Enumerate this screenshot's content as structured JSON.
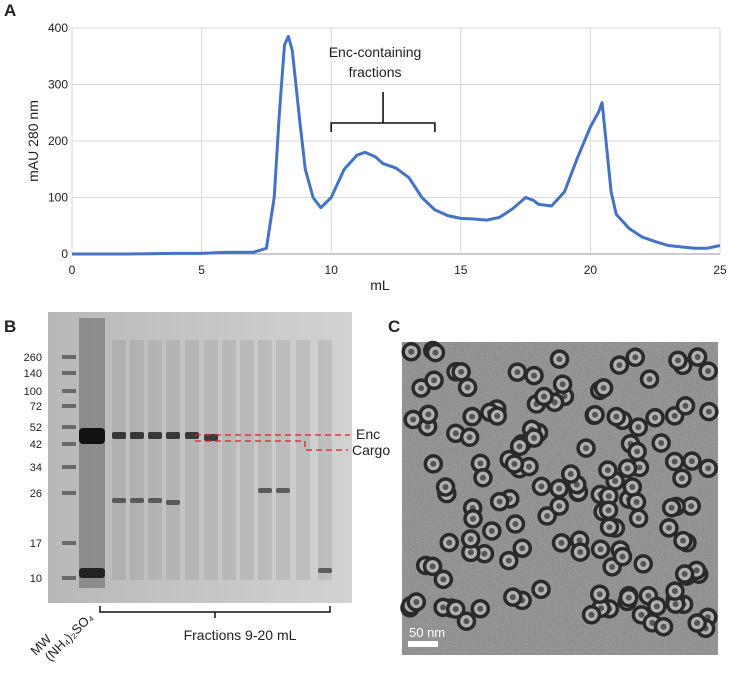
{
  "chart_data": {
    "type": "line",
    "panel_label": "A",
    "xlabel": "mL",
    "ylabel": "mAU 280 nm",
    "x": [
      0,
      1,
      2,
      3,
      4,
      5,
      6,
      7,
      7.5,
      7.8,
      8,
      8.2,
      8.35,
      8.5,
      8.8,
      9,
      9.3,
      9.6,
      10,
      10.5,
      11,
      11.3,
      11.7,
      12,
      12.5,
      13,
      13.5,
      14,
      14.5,
      15,
      15.5,
      16,
      16.5,
      17,
      17.5,
      17.8,
      18,
      18.5,
      19,
      19.5,
      20,
      20.3,
      20.45,
      20.6,
      20.8,
      21,
      21.5,
      22,
      22.5,
      23,
      24,
      24.5,
      25
    ],
    "values": [
      0,
      0,
      0,
      0.5,
      1,
      1,
      3,
      3,
      10,
      100,
      250,
      370,
      385,
      360,
      230,
      150,
      100,
      82,
      100,
      150,
      175,
      180,
      172,
      160,
      152,
      135,
      100,
      78,
      68,
      63,
      62,
      60,
      65,
      80,
      100,
      95,
      88,
      85,
      110,
      170,
      225,
      250,
      268,
      200,
      110,
      70,
      45,
      30,
      22,
      15,
      10,
      10,
      15
    ],
    "color": "#4472c4",
    "xlim": [
      0,
      25
    ],
    "ylim": [
      0,
      400
    ],
    "xticks": [
      0,
      5,
      10,
      15,
      20,
      25
    ],
    "yticks": [
      0,
      100,
      200,
      300,
      400
    ],
    "grid": true,
    "annotation": {
      "lines": [
        "Enc-containing",
        "fractions"
      ],
      "x": [
        10,
        14
      ]
    }
  },
  "gel": {
    "panel_label": "B",
    "markers": [
      260,
      140,
      100,
      72,
      52,
      42,
      34,
      26,
      17,
      10
    ],
    "lanes": [
      "MW",
      "(NH₄)₂SO₄"
    ],
    "fractions_label": "Fractions 9-20 mL",
    "bands": [
      "Enc",
      "Cargo"
    ]
  },
  "tem": {
    "panel_label": "C",
    "scale_bar": "50 nm"
  }
}
